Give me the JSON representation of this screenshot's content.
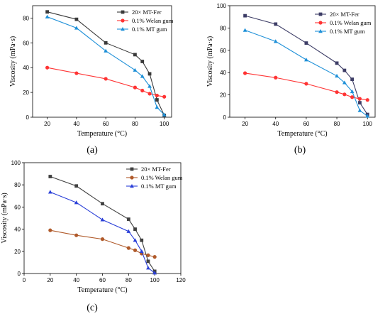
{
  "chart_data": [
    {
      "type": "line",
      "panel_label": "(a)",
      "xlabel": "Temperature (°C)",
      "ylabel": "Viscosity (mPa·s)",
      "xlim": [
        10,
        105
      ],
      "ylim": [
        0,
        90
      ],
      "xticks": [
        20,
        40,
        60,
        80,
        100
      ],
      "yticks": [
        0,
        20,
        40,
        60,
        80
      ],
      "grid": false,
      "legend_position": "top-right",
      "series": [
        {
          "name": "20× MT-Fer",
          "color": "#3a3a3a",
          "marker": "square",
          "x": [
            20,
            40,
            60,
            80,
            85,
            90,
            95,
            100
          ],
          "y": [
            85,
            79,
            60,
            50.5,
            45,
            35,
            14,
            1.5
          ]
        },
        {
          "name": "0.1% Welan gum",
          "color": "#ff3333",
          "marker": "circle",
          "x": [
            20,
            40,
            60,
            80,
            85,
            90,
            95,
            100
          ],
          "y": [
            40,
            35.5,
            31,
            24,
            21.5,
            19,
            17.5,
            16.5
          ]
        },
        {
          "name": "0.1% MT gum",
          "color": "#1e90d8",
          "marker": "triangle",
          "x": [
            20,
            40,
            60,
            80,
            85,
            90,
            95,
            100
          ],
          "y": [
            81,
            72,
            53.5,
            38,
            33,
            25,
            8,
            2
          ]
        }
      ]
    },
    {
      "type": "line",
      "panel_label": "(b)",
      "xlabel": "Temperature (°C)",
      "ylabel": "Viscosity (mPa·s)",
      "xlim": [
        10,
        105
      ],
      "ylim": [
        0,
        100
      ],
      "xticks": [
        20,
        40,
        60,
        80,
        100
      ],
      "yticks": [
        0,
        20,
        40,
        60,
        80,
        100
      ],
      "grid": false,
      "legend_position": "top-right",
      "series": [
        {
          "name": "20× MT-Fer",
          "color": "#3d3d66",
          "marker": "square",
          "x": [
            20,
            40,
            60,
            80,
            85,
            90,
            95,
            100
          ],
          "y": [
            91,
            83.5,
            66.5,
            48.5,
            42,
            34,
            13,
            2.5
          ]
        },
        {
          "name": "0.1% Welan gum",
          "color": "#ff3333",
          "marker": "circle",
          "x": [
            20,
            40,
            60,
            80,
            85,
            90,
            95,
            100
          ],
          "y": [
            39.5,
            35.5,
            30,
            22.5,
            20.5,
            18,
            16.5,
            15.5
          ]
        },
        {
          "name": "0.1% MT gum",
          "color": "#1e90d8",
          "marker": "triangle",
          "x": [
            20,
            40,
            60,
            80,
            85,
            90,
            95,
            100
          ],
          "y": [
            78,
            68,
            51.5,
            37,
            31,
            23,
            6,
            1
          ]
        }
      ]
    },
    {
      "type": "line",
      "panel_label": "(c)",
      "xlabel": "Temperature (°C)",
      "ylabel": "Viscosity (mPa·s)",
      "xlim": [
        0,
        120
      ],
      "ylim": [
        0,
        100
      ],
      "xticks": [
        0,
        20,
        40,
        60,
        80,
        100,
        120
      ],
      "yticks": [
        0,
        20,
        40,
        60,
        80,
        100
      ],
      "grid": false,
      "legend_position": "top-right",
      "series": [
        {
          "name": "20× MT-Fer",
          "color": "#404040",
          "marker": "square",
          "x": [
            20,
            40,
            60,
            80,
            85,
            90,
            95,
            100
          ],
          "y": [
            87.5,
            79,
            63,
            49,
            40,
            30,
            11,
            2
          ]
        },
        {
          "name": "0.1% Welan gum",
          "color": "#b05a2a",
          "marker": "circle",
          "x": [
            20,
            40,
            60,
            80,
            85,
            90,
            95,
            100
          ],
          "y": [
            39,
            34.5,
            31,
            23,
            21,
            18,
            16.5,
            15
          ]
        },
        {
          "name": "0.1% MT gum",
          "color": "#2a3fd8",
          "marker": "triangle",
          "x": [
            20,
            40,
            60,
            80,
            85,
            90,
            95,
            100
          ],
          "y": [
            73.5,
            64,
            48.5,
            38,
            30,
            20,
            5,
            0.5
          ]
        }
      ]
    }
  ]
}
